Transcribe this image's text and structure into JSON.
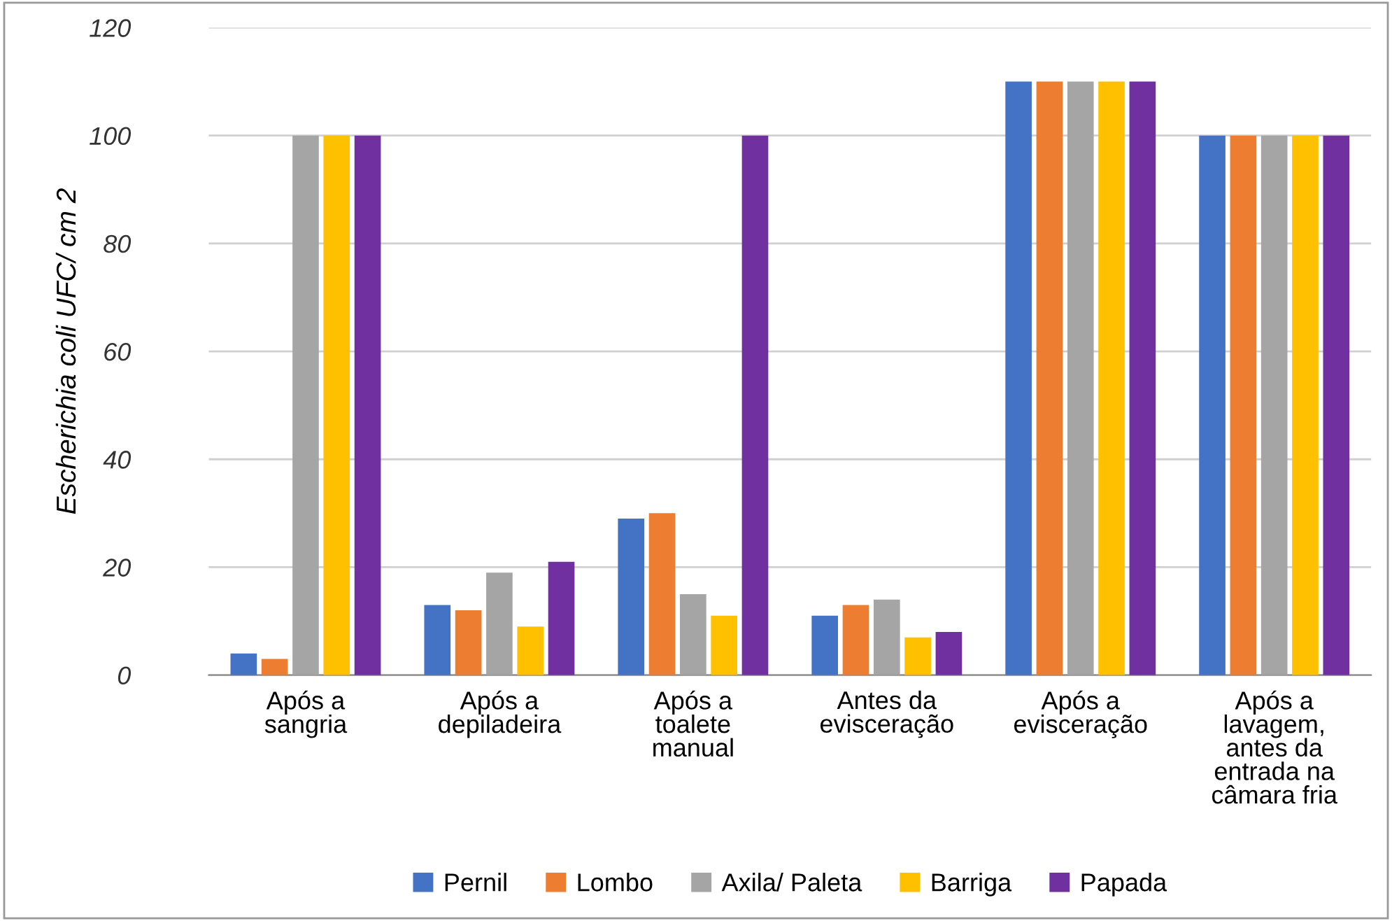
{
  "chart_data": {
    "type": "bar",
    "ylabel": "Escherichia coli UFC/ cm 2",
    "categories": [
      "Após a\nsangria",
      "Após a\ndepiladeira",
      "Após a\ntoalete\nmanual",
      "Antes da\nevisceração",
      "Após a\nevisceração",
      "Após a\nlavagem,\nantes da\nentrada na\ncâmara fria"
    ],
    "series": [
      {
        "name": "Pernil",
        "color": "#4472c4",
        "values": [
          4,
          13,
          29,
          11,
          110,
          100
        ]
      },
      {
        "name": "Lombo",
        "color": "#ed7d31",
        "values": [
          3,
          12,
          30,
          13,
          110,
          100
        ]
      },
      {
        "name": "Axila/ Paleta",
        "color": "#a5a5a5",
        "values": [
          100,
          19,
          15,
          14,
          110,
          100
        ]
      },
      {
        "name": "Barriga",
        "color": "#ffc000",
        "values": [
          100,
          9,
          11,
          7,
          110,
          100
        ]
      },
      {
        "name": "Papada",
        "color": "#7030a0",
        "values": [
          100,
          21,
          100,
          8,
          110,
          100
        ]
      }
    ],
    "ylim": [
      0,
      120
    ],
    "yticks": [
      0,
      20,
      40,
      60,
      80,
      100,
      120
    ],
    "grid": "y",
    "legend": "bottom"
  }
}
